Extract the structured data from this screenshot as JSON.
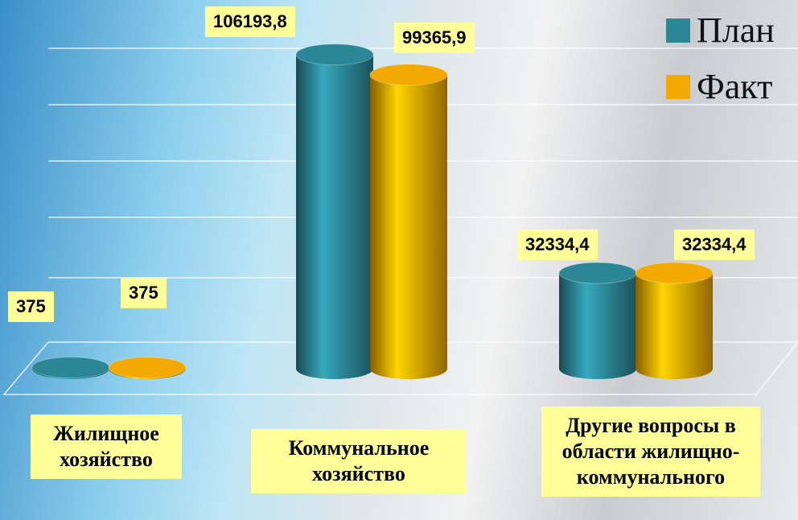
{
  "chart_data": {
    "type": "bar",
    "categories": [
      "Жилищное хозяйство",
      "Коммунальное хозяйство",
      "Другие вопросы в области жилищно-коммунального"
    ],
    "series": [
      {
        "name": "План",
        "color": "#2b8796",
        "values": [
          375,
          106193.8,
          32334.4
        ],
        "value_labels": [
          "375",
          "106193,8",
          "32334,4"
        ]
      },
      {
        "name": "Факт",
        "color": "#f2aa00",
        "values": [
          375,
          99365.9,
          32334.4
        ],
        "value_labels": [
          "375",
          "99365,9",
          "32334,4"
        ]
      }
    ],
    "ylim": [
      0,
      120000
    ]
  }
}
